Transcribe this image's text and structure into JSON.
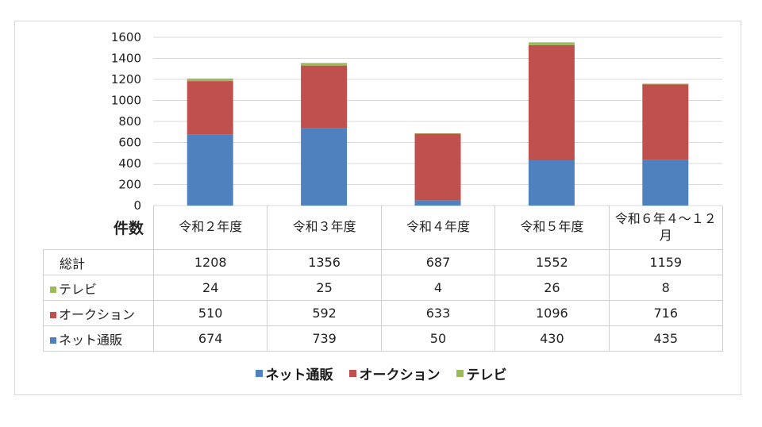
{
  "chart_data": {
    "type": "bar",
    "stacked": true,
    "corner_label": "件数",
    "categories": [
      "令和２年度",
      "令和３年度",
      "令和４年度",
      "令和５年度",
      "令和６年４～１２月"
    ],
    "series": [
      {
        "name": "ネット通販",
        "color": "#4e81bd",
        "values": [
          674,
          739,
          50,
          430,
          435
        ]
      },
      {
        "name": "オークション",
        "color": "#c0504d",
        "values": [
          510,
          592,
          633,
          1096,
          716
        ]
      },
      {
        "name": "テレビ",
        "color": "#9bbb59",
        "values": [
          24,
          25,
          4,
          26,
          8
        ]
      }
    ],
    "totals_label": "総計",
    "totals": [
      1208,
      1356,
      687,
      1552,
      1159
    ],
    "table_row_order": [
      "テレビ",
      "オークション",
      "ネット通販"
    ],
    "ylim": [
      0,
      1600
    ],
    "yticks": [
      0,
      200,
      400,
      600,
      800,
      1000,
      1200,
      1400,
      1600
    ],
    "grid": true,
    "legend_position": "bottom"
  }
}
